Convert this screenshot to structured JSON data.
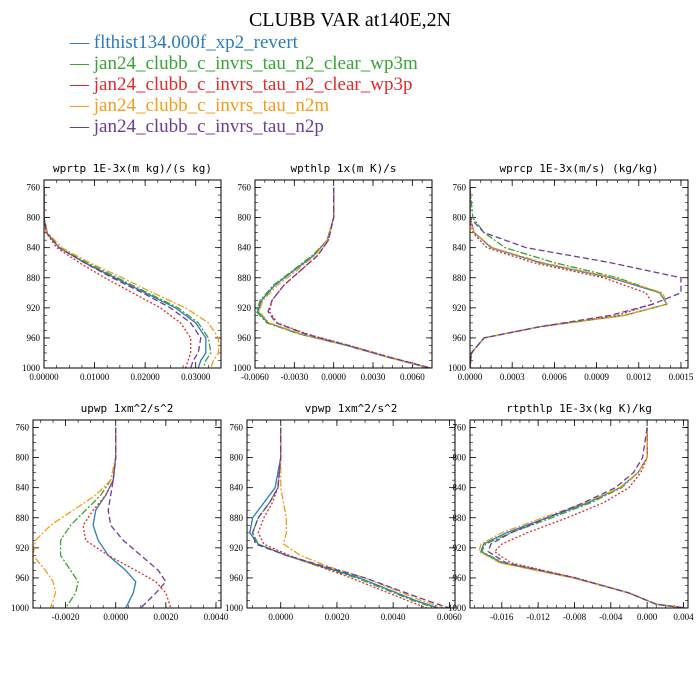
{
  "figure": {
    "title": "CLUBB VAR at140E,2N",
    "colors": {
      "axes": "#000000",
      "series": [
        "#2b7bb9",
        "#3aa335",
        "#e32a2a",
        "#f59b18",
        "#6a3d9a"
      ]
    }
  },
  "legend": {
    "symbol": "—",
    "items": [
      "flthist134.000f_xp2_revert",
      "jan24_clubb_c_invrs_tau_n2_clear_wp3m",
      "jan24_clubb_c_invrs_tau_n2_clear_wp3p",
      "jan24_clubb_c_invrs_tau_n2m",
      "jan24_clubb_c_invrs_tau_n2p"
    ]
  },
  "chart_data": [
    {
      "type": "line",
      "title": "wprtp  1E-3x(m kg)/(s kg)",
      "xlim": [
        0,
        0.035
      ],
      "ylim": [
        1000,
        750
      ],
      "xticks": [
        0,
        0.01,
        0.02,
        0.03
      ],
      "xtick_labels": [
        "0.00000",
        "0.01000",
        "0.02000",
        "0.03000"
      ],
      "yticks": [
        760,
        800,
        840,
        880,
        920,
        960,
        1000
      ],
      "ytick_labels": [
        "760",
        "800",
        "840",
        "880",
        "920",
        "960",
        "1000"
      ],
      "y": [
        760,
        800,
        820,
        840,
        860,
        880,
        900,
        920,
        940,
        960,
        980,
        990,
        1000
      ],
      "series": [
        {
          "name": "flthist134.000f_xp2_revert",
          "style": "solid",
          "values": [
            0,
            0,
            0.0005,
            0.003,
            0.008,
            0.014,
            0.02,
            0.026,
            0.03,
            0.032,
            0.032,
            0.031,
            0.0305
          ]
        },
        {
          "name": "jan24_clubb_c_invrs_tau_n2_clear_wp3m",
          "style": "dashdot",
          "values": [
            0,
            0,
            0.0006,
            0.003,
            0.0085,
            0.0145,
            0.0205,
            0.0265,
            0.0305,
            0.0325,
            0.033,
            0.032,
            0.0315
          ]
        },
        {
          "name": "jan24_clubb_c_invrs_tau_n2_clear_wp3p",
          "style": "dotted",
          "values": [
            0,
            0,
            0.0004,
            0.0025,
            0.007,
            0.012,
            0.0175,
            0.023,
            0.027,
            0.029,
            0.029,
            0.0285,
            0.028
          ]
        },
        {
          "name": "jan24_clubb_c_invrs_tau_n2m",
          "style": "dashdot",
          "values": [
            0,
            0,
            0.0007,
            0.0035,
            0.009,
            0.0155,
            0.0215,
            0.028,
            0.0325,
            0.0345,
            0.0345,
            0.0335,
            0.033
          ]
        },
        {
          "name": "jan24_clubb_c_invrs_tau_n2p",
          "style": "dashed",
          "values": [
            0,
            0,
            0.0005,
            0.003,
            0.008,
            0.0135,
            0.0195,
            0.025,
            0.029,
            0.031,
            0.0305,
            0.0295,
            0.029
          ]
        }
      ]
    },
    {
      "type": "line",
      "title": "wpthlp  1x(m K)/s",
      "xlim": [
        -0.006,
        0.0075
      ],
      "ylim": [
        1000,
        750
      ],
      "xticks": [
        -0.006,
        -0.003,
        0,
        0.003,
        0.006
      ],
      "xtick_labels": [
        "-0.0060",
        "-0.0030",
        "0.0000",
        "0.0030",
        "0.0060"
      ],
      "yticks": [
        760,
        800,
        840,
        880,
        920,
        960,
        1000
      ],
      "ytick_labels": [
        "760",
        "800",
        "840",
        "880",
        "920",
        "960",
        "1000"
      ],
      "y": [
        760,
        800,
        830,
        850,
        870,
        890,
        910,
        925,
        940,
        955,
        970,
        985,
        1000
      ],
      "series": [
        {
          "name": "flthist134.000f_xp2_revert",
          "style": "solid",
          "values": [
            0,
            0,
            -0.0005,
            -0.0015,
            -0.003,
            -0.0045,
            -0.0055,
            -0.0058,
            -0.005,
            -0.0025,
            0.001,
            0.004,
            0.0073
          ]
        },
        {
          "name": "jan24_clubb_c_invrs_tau_n2_clear_wp3m",
          "style": "dashdot",
          "values": [
            0,
            0,
            -0.0005,
            -0.0016,
            -0.0031,
            -0.0046,
            -0.0056,
            -0.0059,
            -0.0051,
            -0.0026,
            0.001,
            0.004,
            0.0073
          ]
        },
        {
          "name": "jan24_clubb_c_invrs_tau_n2_clear_wp3p",
          "style": "dotted",
          "values": [
            0,
            0,
            -0.0004,
            -0.0012,
            -0.0025,
            -0.0038,
            -0.0047,
            -0.0049,
            -0.0043,
            -0.002,
            0.0012,
            0.0042,
            0.0074
          ]
        },
        {
          "name": "jan24_clubb_c_invrs_tau_n2m",
          "style": "dashdot",
          "values": [
            0,
            0,
            -0.0005,
            -0.0014,
            -0.0028,
            -0.0043,
            -0.0054,
            -0.0057,
            -0.0049,
            -0.0024,
            0.001,
            0.004,
            0.0073
          ]
        },
        {
          "name": "jan24_clubb_c_invrs_tau_n2p",
          "style": "dashed",
          "values": [
            0,
            0,
            -0.0004,
            -0.0012,
            -0.0025,
            -0.0038,
            -0.0047,
            -0.005,
            -0.0044,
            -0.0021,
            0.0011,
            0.0041,
            0.0074
          ]
        }
      ]
    },
    {
      "type": "line",
      "title": "wprcp  1E-3x(m/s) (kg/kg)",
      "xlim": [
        0,
        0.00155
      ],
      "ylim": [
        1000,
        750
      ],
      "xticks": [
        0,
        0.0003,
        0.0006,
        0.0009,
        0.0012,
        0.0015
      ],
      "xtick_labels": [
        "0.0000",
        "0.0003",
        "0.0006",
        "0.0009",
        "0.0012",
        "0.0015"
      ],
      "yticks": [
        760,
        800,
        840,
        880,
        920,
        960,
        1000
      ],
      "ytick_labels": [
        "760",
        "800",
        "840",
        "880",
        "920",
        "960",
        "1000"
      ],
      "y": [
        760,
        800,
        820,
        840,
        860,
        880,
        900,
        915,
        930,
        945,
        960,
        980,
        1000
      ],
      "series": [
        {
          "name": "flthist134.000f_xp2_revert",
          "style": "solid",
          "values": [
            0,
            0,
            3e-05,
            0.00015,
            0.0005,
            0.001,
            0.00135,
            0.0014,
            0.0011,
            0.0005,
            0.0001,
            1e-05,
            0
          ]
        },
        {
          "name": "jan24_clubb_c_invrs_tau_n2_clear_wp3m",
          "style": "dashdot",
          "values": [
            0,
            2e-05,
            0.0001,
            0.00025,
            0.0006,
            0.00105,
            0.00135,
            0.0014,
            0.0011,
            0.0005,
            0.0001,
            1e-05,
            0
          ]
        },
        {
          "name": "jan24_clubb_c_invrs_tau_n2_clear_wp3p",
          "style": "dotted",
          "values": [
            0,
            0,
            2e-05,
            0.00012,
            0.00045,
            0.00095,
            0.00125,
            0.0013,
            0.00105,
            0.0005,
            0.0001,
            1e-05,
            0
          ]
        },
        {
          "name": "jan24_clubb_c_invrs_tau_n2m",
          "style": "dashdot",
          "values": [
            0,
            0,
            3e-05,
            0.00016,
            0.00052,
            0.00102,
            0.00137,
            0.0014,
            0.0011,
            0.0005,
            0.0001,
            1e-05,
            0
          ]
        },
        {
          "name": "jan24_clubb_c_invrs_tau_n2p",
          "style": "dashed",
          "values": [
            0,
            0,
            0.0001,
            0.0004,
            0.001,
            0.0015,
            0.0015,
            0.0013,
            0.001,
            0.0005,
            0.0001,
            1e-05,
            0
          ]
        }
      ]
    },
    {
      "type": "line",
      "title": "upwp  1xm^2/s^2",
      "xlim": [
        -0.0033,
        0.0042
      ],
      "ylim": [
        1000,
        750
      ],
      "xticks": [
        -0.002,
        0,
        0.002,
        0.004
      ],
      "xtick_labels": [
        "-0.0020",
        "0.0000",
        "0.0020",
        "0.0040"
      ],
      "yticks": [
        760,
        800,
        840,
        880,
        920,
        960,
        1000
      ],
      "ytick_labels": [
        "760",
        "800",
        "840",
        "880",
        "920",
        "960",
        "1000"
      ],
      "y": [
        760,
        800,
        830,
        850,
        870,
        890,
        910,
        930,
        950,
        965,
        980,
        1000
      ],
      "series": [
        {
          "name": "flthist134.000f_xp2_revert",
          "style": "solid",
          "values": [
            0,
            0,
            -0.0001,
            -0.0004,
            -0.0008,
            -0.0009,
            -0.0007,
            -0.0003,
            0.0004,
            0.0008,
            0.0007,
            0.0004
          ]
        },
        {
          "name": "jan24_clubb_c_invrs_tau_n2_clear_wp3m",
          "style": "dashdot",
          "values": [
            0,
            0,
            -0.0002,
            -0.0006,
            -0.0012,
            -0.0018,
            -0.0022,
            -0.0022,
            -0.0018,
            -0.0015,
            -0.0016,
            -0.002
          ]
        },
        {
          "name": "jan24_clubb_c_invrs_tau_n2_clear_wp3p",
          "style": "dotted",
          "values": [
            0,
            0,
            -0.0001,
            -0.0004,
            -0.0009,
            -0.0013,
            -0.0012,
            -0.0003,
            0.0008,
            0.0016,
            0.002,
            0.0022
          ]
        },
        {
          "name": "jan24_clubb_c_invrs_tau_n2m",
          "style": "dashdot",
          "values": [
            0,
            0,
            -0.0002,
            -0.0008,
            -0.0017,
            -0.0026,
            -0.0032,
            -0.0033,
            -0.0028,
            -0.0025,
            -0.0024,
            -0.0026
          ]
        },
        {
          "name": "jan24_clubb_c_invrs_tau_n2p",
          "style": "dashed",
          "values": [
            0,
            0,
            -0.0001,
            -0.0002,
            -0.0003,
            -0.0002,
            0.0003,
            0.001,
            0.0017,
            0.002,
            0.0016,
            0.001
          ]
        }
      ]
    },
    {
      "type": "line",
      "title": "vpwp  1xm^2/s^2",
      "xlim": [
        -0.0012,
        0.0062
      ],
      "ylim": [
        1000,
        750
      ],
      "xticks": [
        0,
        0.002,
        0.004,
        0.006
      ],
      "xtick_labels": [
        "0.0000",
        "0.0020",
        "0.0040",
        "0.0060"
      ],
      "yticks": [
        760,
        800,
        840,
        880,
        920,
        960,
        1000
      ],
      "ytick_labels": [
        "760",
        "800",
        "840",
        "880",
        "920",
        "960",
        "1000"
      ],
      "y": [
        760,
        800,
        840,
        860,
        880,
        900,
        915,
        930,
        945,
        960,
        975,
        990,
        1000
      ],
      "series": [
        {
          "name": "flthist134.000f_xp2_revert",
          "style": "solid",
          "values": [
            0,
            0,
            -0.0002,
            -0.0006,
            -0.001,
            -0.0011,
            -0.0008,
            0.0002,
            0.0015,
            0.0028,
            0.0038,
            0.0048,
            0.0056
          ]
        },
        {
          "name": "jan24_clubb_c_invrs_tau_n2_clear_wp3m",
          "style": "dashdot",
          "values": [
            0,
            0,
            -0.0001,
            -0.0004,
            -0.0008,
            -0.001,
            -0.0008,
            0.0002,
            0.0014,
            0.0027,
            0.0037,
            0.0047,
            0.0055
          ]
        },
        {
          "name": "jan24_clubb_c_invrs_tau_n2_clear_wp3p",
          "style": "dotted",
          "values": [
            0,
            0,
            -0.0001,
            -0.0003,
            -0.0006,
            -0.0008,
            -0.0006,
            0.0003,
            0.0014,
            0.0025,
            0.0035,
            0.0045,
            0.0052
          ]
        },
        {
          "name": "jan24_clubb_c_invrs_tau_n2m",
          "style": "dashdot",
          "values": [
            0,
            0,
            0,
            0.0001,
            0.0002,
            0.0002,
            0.0001,
            0.0007,
            0.0017,
            0.003,
            0.004,
            0.005,
            0.0058
          ]
        },
        {
          "name": "jan24_clubb_c_invrs_tau_n2p",
          "style": "dashed",
          "values": [
            0,
            0,
            -0.0001,
            -0.0004,
            -0.0008,
            -0.001,
            -0.0009,
            0.0002,
            0.0016,
            0.003,
            0.0041,
            0.0052,
            0.006
          ]
        }
      ]
    },
    {
      "type": "line",
      "title": "rtpthlp  1E-3x(kg K)/kg",
      "xlim": [
        -0.0195,
        0.0045
      ],
      "ylim": [
        1000,
        750
      ],
      "xticks": [
        -0.016,
        -0.012,
        -0.008,
        -0.004,
        0,
        0.004
      ],
      "xtick_labels": [
        "-0.016",
        "-0.012",
        "-0.008",
        "-0.004",
        "0.000",
        "0.004"
      ],
      "yticks": [
        760,
        800,
        840,
        880,
        920,
        960,
        1000
      ],
      "ytick_labels": [
        "760",
        "800",
        "840",
        "880",
        "920",
        "960",
        "1000"
      ],
      "y": [
        760,
        800,
        820,
        840,
        860,
        880,
        900,
        915,
        925,
        940,
        960,
        980,
        995,
        1000
      ],
      "series": [
        {
          "name": "flthist134.000f_xp2_revert",
          "style": "solid",
          "values": [
            0,
            0,
            -0.001,
            -0.003,
            -0.0065,
            -0.011,
            -0.0155,
            -0.018,
            -0.0183,
            -0.016,
            -0.008,
            -0.002,
            0.001,
            0.0042
          ]
        },
        {
          "name": "jan24_clubb_c_invrs_tau_n2_clear_wp3m",
          "style": "dashdot",
          "values": [
            0,
            0,
            -0.001,
            -0.0028,
            -0.0062,
            -0.0105,
            -0.015,
            -0.0178,
            -0.0182,
            -0.0158,
            -0.008,
            -0.002,
            0.001,
            0.0042
          ]
        },
        {
          "name": "jan24_clubb_c_invrs_tau_n2_clear_wp3p",
          "style": "dotted",
          "values": [
            0,
            0,
            -0.0007,
            -0.002,
            -0.0048,
            -0.0088,
            -0.0132,
            -0.016,
            -0.0168,
            -0.015,
            -0.0078,
            -0.002,
            0.001,
            0.0042
          ]
        },
        {
          "name": "jan24_clubb_c_invrs_tau_n2m",
          "style": "dashdot",
          "values": [
            0,
            0,
            -0.001,
            -0.003,
            -0.0068,
            -0.0115,
            -0.016,
            -0.0183,
            -0.0185,
            -0.0162,
            -0.0082,
            -0.002,
            0.001,
            0.0042
          ]
        },
        {
          "name": "jan24_clubb_c_invrs_tau_n2p",
          "style": "dashed",
          "values": [
            0,
            -0.0005,
            -0.0015,
            -0.0035,
            -0.007,
            -0.011,
            -0.015,
            -0.0172,
            -0.0175,
            -0.0155,
            -0.0079,
            -0.002,
            0.001,
            0.0042
          ]
        }
      ]
    }
  ]
}
